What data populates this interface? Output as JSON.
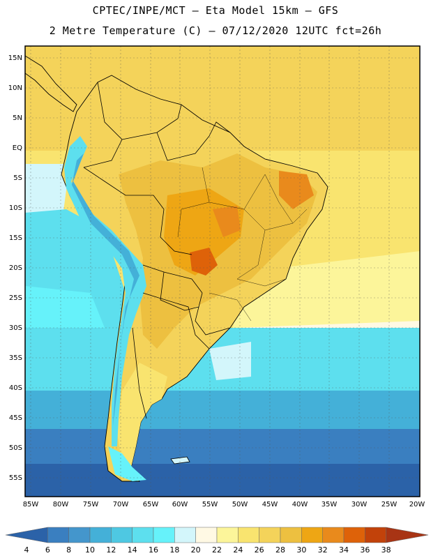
{
  "header": {
    "line1": "CPTEC/INPE/MCT –  Eta Model 15km – GFS",
    "line2": "2 Metre Temperature (C) – 07/12/2020 12UTC fct=26h"
  },
  "map": {
    "lat_labels": [
      "15N",
      "10N",
      "5N",
      "EQ",
      "5S",
      "10S",
      "15S",
      "20S",
      "25S",
      "30S",
      "35S",
      "40S",
      "45S",
      "50S",
      "55S"
    ],
    "lon_labels": [
      "85W",
      "80W",
      "75W",
      "70W",
      "65W",
      "60W",
      "55W",
      "50W",
      "45W",
      "40W",
      "35W",
      "30W",
      "25W",
      "20W"
    ]
  },
  "colorbar": {
    "labels": [
      "4",
      "6",
      "8",
      "10",
      "12",
      "14",
      "16",
      "18",
      "20",
      "22",
      "24",
      "26",
      "28",
      "30",
      "32",
      "34",
      "36",
      "38"
    ],
    "colors": [
      "#2b62a8",
      "#3a7fc0",
      "#4496cc",
      "#44b0d8",
      "#4ec8e2",
      "#5ddfee",
      "#66f2fa",
      "#d3f6fb",
      "#fff9e4",
      "#fcf59a",
      "#f9e46f",
      "#f4d35a",
      "#edc040",
      "#eea614",
      "#e98a1c",
      "#de6209",
      "#c2420a",
      "#a83414"
    ]
  }
}
